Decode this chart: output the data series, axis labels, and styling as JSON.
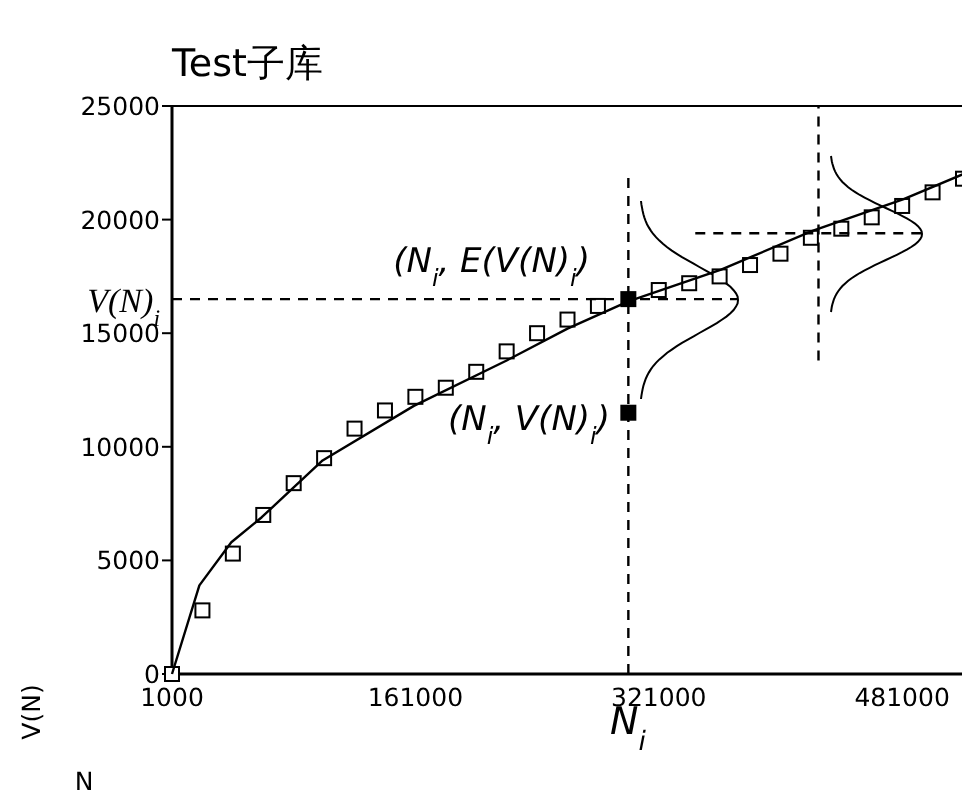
{
  "chart_data": {
    "type": "scatter",
    "title": "Test子库",
    "xlabel": "N",
    "ylabel": "V(N)",
    "xlim": [
      1000,
      521000
    ],
    "ylim": [
      0,
      25000
    ],
    "xticks": [
      1000,
      161000,
      321000,
      481000
    ],
    "yticks": [
      0,
      5000,
      10000,
      15000,
      20000,
      25000
    ],
    "series": [
      {
        "marker": "square",
        "color": "#ffffff",
        "x": [
          1000,
          21000,
          41000,
          61000,
          81000,
          101000,
          121000,
          141000,
          161000,
          181000,
          201000,
          221000,
          241000,
          261000,
          281000,
          301000,
          321000,
          341000,
          361000,
          381000,
          401000,
          421000,
          441000,
          461000,
          481000,
          501000,
          521000
        ],
        "values": [
          0,
          2800,
          5300,
          7000,
          8400,
          9500,
          10800,
          11600,
          12200,
          12600,
          13300,
          14200,
          15000,
          15600,
          16200,
          null,
          16900,
          17200,
          17500,
          18000,
          18500,
          19200,
          19600,
          20100,
          20600,
          21200,
          21800
        ]
      },
      {
        "type": "line",
        "line_style": "solid",
        "color": "#000000",
        "x": [
          1000,
          19000,
          40000,
          60000,
          100000,
          160000,
          221000,
          261000,
          301000,
          362000,
          422000,
          482000,
          521000
        ],
        "values": [
          0,
          3900,
          5800,
          6900,
          9400,
          11800,
          13800,
          15200,
          16400,
          17800,
          19500,
          20900,
          22000
        ]
      },
      {
        "marker": "square",
        "color": "#000000",
        "x": [
          301000,
          301000
        ],
        "values": [
          16500,
          11500
        ]
      },
      {
        "type": "line",
        "line_style": "dashed",
        "color": "#000000",
        "x": [
          301000,
          301000
        ],
        "values": [
          0,
          21900
        ]
      },
      {
        "type": "line",
        "line_style": "dashed",
        "color": "#000000",
        "x": [
          1000,
          373000
        ],
        "values": [
          16500,
          16500
        ]
      },
      {
        "type": "line",
        "line_style": "dashed",
        "color": "#000000",
        "x": [
          426000,
          426000
        ],
        "values": [
          13800,
          25000
        ]
      },
      {
        "type": "line",
        "line_style": "dashed",
        "color": "#000000",
        "x": [
          345000,
          494000
        ],
        "values": [
          19400,
          19400
        ]
      }
    ],
    "annotations": [
      "(N$_{i}$, E(V(N)$_{i}$)",
      "(N$_{i}$, V(N)$_{i}$)",
      "V(N)$_{i}$",
      "N$_{i}$"
    ]
  }
}
